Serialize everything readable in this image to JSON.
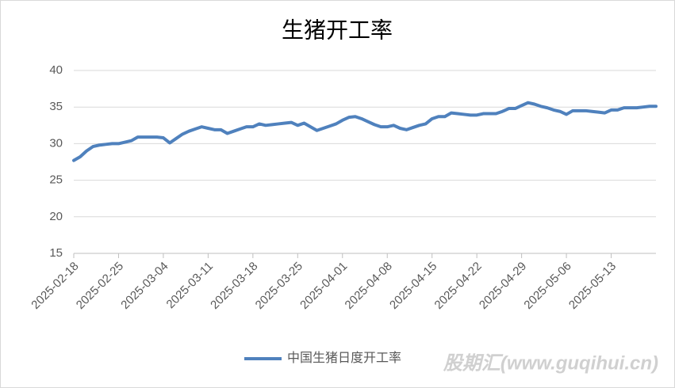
{
  "chart_data": {
    "type": "line",
    "title": "生猪开工率",
    "categories": [
      "2025-02-18",
      null,
      null,
      null,
      null,
      null,
      null,
      "2025-02-25",
      null,
      null,
      null,
      null,
      null,
      null,
      "2025-03-04",
      null,
      null,
      null,
      null,
      null,
      null,
      "2025-03-11",
      null,
      null,
      null,
      null,
      null,
      null,
      "2025-03-18",
      null,
      null,
      null,
      null,
      null,
      null,
      "2025-03-25",
      null,
      null,
      null,
      null,
      null,
      null,
      "2025-04-01",
      null,
      null,
      null,
      null,
      null,
      null,
      "2025-04-08",
      null,
      null,
      null,
      null,
      null,
      null,
      "2025-04-15",
      null,
      null,
      null,
      null,
      null,
      null,
      "2025-04-22",
      null,
      null,
      null,
      null,
      null,
      null,
      "2025-04-29",
      null,
      null,
      null,
      null,
      null,
      null,
      "2025-05-06",
      null,
      null,
      null,
      null,
      null,
      null,
      "2025-05-13",
      null,
      null,
      null,
      null,
      null,
      null,
      null
    ],
    "series": [
      {
        "name": "中国生猪日度开工率",
        "color": "#4f81bd",
        "values": [
          27.7,
          28.2,
          29.0,
          29.6,
          29.8,
          29.9,
          30.0,
          30.0,
          30.2,
          30.4,
          30.9,
          30.9,
          30.9,
          30.9,
          30.8,
          30.1,
          30.7,
          31.3,
          31.7,
          32.0,
          32.3,
          32.1,
          31.9,
          31.9,
          31.4,
          31.7,
          32.0,
          32.3,
          32.3,
          32.7,
          32.5,
          32.6,
          32.7,
          32.8,
          32.9,
          32.5,
          32.8,
          32.3,
          31.8,
          32.1,
          32.4,
          32.7,
          33.2,
          33.6,
          33.7,
          33.4,
          33.0,
          32.6,
          32.3,
          32.3,
          32.5,
          32.1,
          31.9,
          32.2,
          32.5,
          32.7,
          33.4,
          33.7,
          33.7,
          34.2,
          34.1,
          34.0,
          33.9,
          33.9,
          34.1,
          34.1,
          34.1,
          34.4,
          34.8,
          34.8,
          35.2,
          35.6,
          35.4,
          35.1,
          34.9,
          34.6,
          34.4,
          34.0,
          34.5,
          34.5,
          34.5,
          34.4,
          34.3,
          34.2,
          34.6,
          34.6,
          34.9,
          34.9,
          34.9,
          35.0,
          35.1,
          35.1
        ]
      }
    ],
    "ylim": [
      15,
      40
    ],
    "yticks": [
      15,
      20,
      25,
      30,
      35,
      40
    ],
    "grid": true,
    "legend": "bottom",
    "watermark": "股期汇(www.guqihui.cn)"
  }
}
